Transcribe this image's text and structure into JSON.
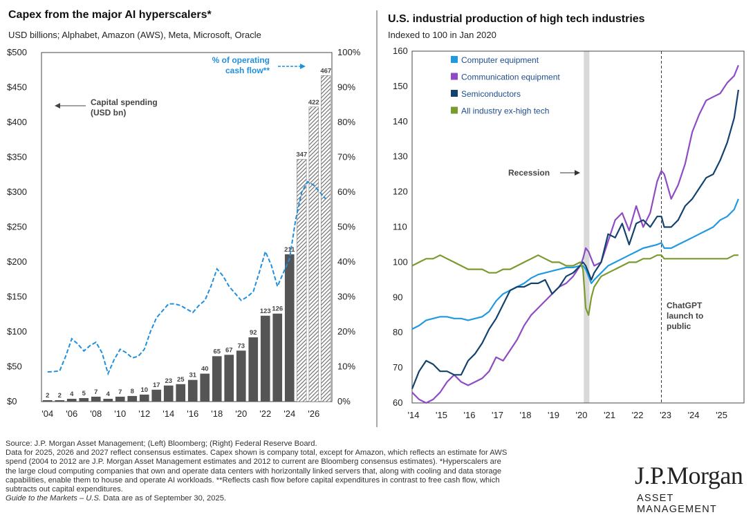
{
  "left_chart": {
    "title": "Capex from the major AI hyperscalers*",
    "subtitle": "USD billions; Alphabet, Amazon (AWS), Meta, Microsoft, Oracle",
    "annotation_capex": [
      "Capital spending",
      "(USD bn)"
    ],
    "annotation_ocf": [
      "% of operating",
      "cash flow**"
    ]
  },
  "right_chart": {
    "title": "U.S. industrial production of high tech industries",
    "subtitle": "Indexed to 100 in Jan 2020",
    "recession_label": "Recession",
    "chatgpt_label": [
      "ChatGPT",
      "launch to",
      "public"
    ]
  },
  "footer": {
    "lines": [
      "Source: J.P. Morgan Asset Management; (Left) Bloomberg; (Right) Federal Reserve Board.",
      "Data for 2025, 2026 and 2027 reflect consensus estimates. Capex shown is company total, except for Amazon, which reflects an estimate for AWS",
      "spend (2004 to 2012 are J.P. Morgan Asset Management estimates and 2012 to current are Bloomberg consensus estimates). *Hyperscalers are",
      "the large cloud computing companies that own and operate data centers with horizontally linked servers that, along with cooling and data storage",
      "capabilities, enable them to house and operate AI workloads. **Reflects cash flow before capital expenditures in contrast to free cash flow, which",
      "subtracts out capital expenditures."
    ],
    "guide_italic": "Guide to the Markets – U.S.",
    "guide_rest": " Data are as of September 30, 2025."
  },
  "logo": {
    "name": "J.P.Morgan",
    "sub": "ASSET MANAGEMENT"
  },
  "colors": {
    "bar": "#555555",
    "hatched": "#777777",
    "ocf_line": "#1f8fde",
    "computer": "#1f9ae0",
    "communication": "#8e4bc4",
    "semiconductors": "#14426e",
    "ex_hightech": "#7a9a2f",
    "recession": "#d9d9d9"
  },
  "chart_data": [
    {
      "type": "bar",
      "title": "Capex from the major AI hyperscalers*",
      "ylabel": "USD billions",
      "y_left_ticks": [
        "$0",
        "$50",
        "$100",
        "$150",
        "$200",
        "$250",
        "$300",
        "$350",
        "$400",
        "$450",
        "$500"
      ],
      "y_right_ticks": [
        "0%",
        "10%",
        "20%",
        "30%",
        "40%",
        "50%",
        "60%",
        "70%",
        "80%",
        "90%",
        "100%"
      ],
      "x_ticks": [
        "'04",
        "'06",
        "'08",
        "'10",
        "'12",
        "'14",
        "'16",
        "'18",
        "'20",
        "'22",
        "'24",
        "'26"
      ],
      "ylim": [
        0,
        500
      ],
      "categories": [
        "2004",
        "2005",
        "2006",
        "2007",
        "2008",
        "2009",
        "2010",
        "2011",
        "2012",
        "2013",
        "2014",
        "2015",
        "2016",
        "2017",
        "2018",
        "2019",
        "2020",
        "2021",
        "2022",
        "2023",
        "2024",
        "2025",
        "2026",
        "2027"
      ],
      "series": [
        {
          "name": "Capital spending (USD bn)",
          "values": [
            2,
            2,
            4,
            5,
            7,
            4,
            7,
            8,
            10,
            17,
            23,
            25,
            31,
            40,
            65,
            67,
            73,
            92,
            123,
            126,
            211,
            347,
            422,
            467
          ],
          "estimate_from": "2025"
        },
        {
          "name": "% of operating cash flow**",
          "type": "line",
          "x": [
            2004,
            2004.5,
            2005,
            2005.5,
            2006,
            2006.5,
            2007,
            2007.5,
            2008,
            2008.5,
            2009,
            2009.5,
            2010,
            2010.5,
            2011,
            2011.5,
            2012,
            2012.5,
            2013,
            2013.5,
            2014,
            2014.5,
            2015,
            2015.5,
            2016,
            2016.5,
            2017,
            2017.5,
            2018,
            2018.5,
            2019,
            2019.5,
            2020,
            2020.5,
            2021,
            2021.5,
            2022,
            2022.5,
            2023,
            2023.5,
            2024,
            2024.5,
            2025,
            2025.5,
            2026,
            2026.5,
            2027
          ],
          "values": [
            8.5,
            8.6,
            8.8,
            13,
            18,
            16.5,
            14.5,
            16,
            17,
            14,
            8,
            12,
            15,
            14,
            12.5,
            13,
            15,
            20,
            24,
            26,
            28,
            28,
            27.5,
            26.5,
            25.5,
            27.5,
            29,
            33,
            38,
            36,
            33,
            31,
            29,
            30,
            31.5,
            37,
            43,
            39,
            33,
            37,
            41,
            52,
            60,
            63,
            62,
            60,
            58
          ]
        }
      ]
    },
    {
      "type": "line",
      "title": "U.S. industrial production of high tech industries",
      "ylabel": "Indexed to 100 in Jan 2020",
      "ylim": [
        60,
        160
      ],
      "y_ticks": [
        "60",
        "70",
        "80",
        "90",
        "100",
        "110",
        "120",
        "130",
        "140",
        "150",
        "160"
      ],
      "x_ticks": [
        "'14",
        "'15",
        "'16",
        "'17",
        "'18",
        "'19",
        "'20",
        "'21",
        "'22",
        "'23",
        "'24",
        "'25"
      ],
      "recession": [
        2020.13,
        2020.33
      ],
      "chatgpt_launch": 2022.9,
      "x": [
        2014,
        2014.25,
        2014.5,
        2014.75,
        2015,
        2015.25,
        2015.5,
        2015.75,
        2016,
        2016.25,
        2016.5,
        2016.75,
        2017,
        2017.25,
        2017.5,
        2017.75,
        2018,
        2018.25,
        2018.5,
        2018.75,
        2019,
        2019.25,
        2019.5,
        2019.75,
        2020,
        2020.1,
        2020.2,
        2020.3,
        2020.4,
        2020.5,
        2020.75,
        2021,
        2021.25,
        2021.5,
        2021.75,
        2022,
        2022.25,
        2022.5,
        2022.75,
        2022.9,
        2023,
        2023.25,
        2023.5,
        2023.75,
        2024,
        2024.25,
        2024.5,
        2024.75,
        2025,
        2025.25,
        2025.5,
        2025.65
      ],
      "series": [
        {
          "name": "Computer equipment",
          "values": [
            81,
            82,
            83.5,
            84,
            84.5,
            84.5,
            84,
            84,
            83.5,
            84,
            84.5,
            86,
            89,
            91,
            92,
            93,
            94,
            95.5,
            96.5,
            97,
            97.5,
            98,
            98.5,
            98.5,
            99,
            99,
            98,
            96,
            94,
            95,
            97,
            99,
            100,
            101,
            102,
            103,
            104,
            104.5,
            105,
            105.5,
            104,
            104,
            105,
            106,
            107,
            108,
            109,
            110,
            112,
            113,
            115,
            118
          ]
        },
        {
          "name": "Communication equipment",
          "values": [
            63,
            61,
            60,
            61,
            63,
            66,
            68,
            66,
            65,
            66,
            67,
            69,
            73,
            72,
            75,
            78,
            82,
            85,
            87,
            89,
            91,
            93,
            94,
            96,
            99,
            101,
            104,
            103,
            101,
            99,
            100,
            106,
            112,
            114,
            109,
            116,
            110,
            114,
            123,
            126,
            125,
            118,
            122,
            128,
            137,
            142,
            146,
            147,
            148,
            151,
            153,
            156
          ]
        },
        {
          "name": "Semiconductors",
          "values": [
            64,
            69,
            72,
            71,
            69,
            69,
            68,
            68,
            72,
            74,
            77,
            81,
            84,
            88,
            92,
            93,
            93,
            94,
            94,
            95,
            91,
            93,
            96,
            97,
            99,
            100,
            99,
            97,
            95,
            97,
            100,
            108,
            107,
            111,
            105,
            111,
            112,
            110,
            113,
            113,
            110,
            110,
            112,
            116,
            118,
            121,
            124,
            125,
            129,
            134,
            141,
            149
          ]
        },
        {
          "name": "All industry ex-high tech",
          "values": [
            99,
            100,
            101,
            101,
            102,
            101,
            100,
            99,
            98,
            98,
            98,
            97,
            97,
            98,
            98,
            99,
            100,
            101,
            102,
            101,
            100,
            100,
            99,
            99,
            100,
            98,
            87,
            85,
            90,
            93,
            96,
            97,
            98,
            99,
            100,
            100,
            101,
            101,
            102,
            102,
            101,
            101,
            101,
            101,
            101,
            101,
            101,
            101,
            101,
            101,
            102,
            102
          ]
        }
      ]
    }
  ]
}
